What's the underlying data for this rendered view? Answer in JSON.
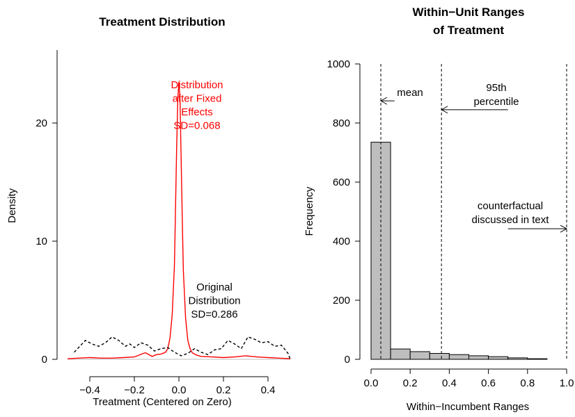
{
  "chart_data": [
    {
      "type": "line",
      "title": "Treatment Distribution",
      "xlabel": "Treatment (Centered on Zero)",
      "ylabel": "Density",
      "xlim": [
        -0.52,
        0.55
      ],
      "ylim": [
        0,
        26
      ],
      "x_ticks": [
        "-0.4",
        "-0.2",
        "0.0",
        "0.2",
        "0.4"
      ],
      "x_tick_values": [
        -0.4,
        -0.2,
        0.0,
        0.2,
        0.4
      ],
      "y_ticks": [
        "0",
        "10",
        "20"
      ],
      "y_tick_values": [
        0,
        10,
        20
      ],
      "series": [
        {
          "color": "#ff0000",
          "style": "solid",
          "x": [
            -0.5,
            -0.45,
            -0.4,
            -0.35,
            -0.3,
            -0.25,
            -0.2,
            -0.18,
            -0.16,
            -0.15,
            -0.14,
            -0.12,
            -0.1,
            -0.08,
            -0.06,
            -0.05,
            -0.04,
            -0.03,
            -0.02,
            -0.015,
            -0.01,
            -0.005,
            0.0,
            0.005,
            0.01,
            0.015,
            0.02,
            0.03,
            0.04,
            0.05,
            0.06,
            0.08,
            0.1,
            0.15,
            0.2,
            0.25,
            0.3,
            0.35,
            0.4,
            0.45,
            0.5
          ],
          "y": [
            0.05,
            0.1,
            0.15,
            0.1,
            0.1,
            0.15,
            0.2,
            0.35,
            0.5,
            0.55,
            0.45,
            0.25,
            0.4,
            0.45,
            0.6,
            0.9,
            1.8,
            3.8,
            8.0,
            13.0,
            18.0,
            22.0,
            23.5,
            22.0,
            17.0,
            12.0,
            7.5,
            3.5,
            1.6,
            0.9,
            0.55,
            0.35,
            0.25,
            0.2,
            0.15,
            0.2,
            0.3,
            0.2,
            0.15,
            0.1,
            0.05
          ]
        },
        {
          "color": "#000000",
          "style": "dashed",
          "x": [
            -0.47,
            -0.44,
            -0.42,
            -0.39,
            -0.36,
            -0.33,
            -0.3,
            -0.27,
            -0.24,
            -0.22,
            -0.2,
            -0.17,
            -0.14,
            -0.11,
            -0.08,
            -0.05,
            -0.02,
            0.01,
            0.04,
            0.07,
            0.1,
            0.13,
            0.16,
            0.19,
            0.22,
            0.25,
            0.28,
            0.31,
            0.34,
            0.37,
            0.4,
            0.43,
            0.46,
            0.49,
            0.5
          ],
          "y": [
            0.6,
            1.2,
            1.6,
            1.3,
            1.1,
            1.4,
            1.9,
            1.6,
            1.1,
            1.3,
            1.0,
            1.4,
            1.2,
            0.7,
            0.9,
            1.0,
            0.6,
            0.3,
            0.5,
            0.9,
            0.6,
            0.4,
            0.8,
            0.9,
            1.6,
            1.3,
            0.9,
            1.9,
            1.7,
            1.4,
            1.5,
            1.1,
            1.2,
            0.5,
            0.0
          ]
        }
      ],
      "annotations": [
        {
          "lines": [
            "Distribution",
            "after Fixed",
            "Effects",
            "SD=0.068"
          ],
          "color": "#ff0000"
        },
        {
          "lines": [
            "Original",
            "Distribution",
            "SD=0.286"
          ],
          "color": "#000000"
        }
      ]
    },
    {
      "type": "bar",
      "title_lines": [
        "Within−Unit Ranges",
        "of Treatment"
      ],
      "xlabel": "Within−Incumbent Ranges",
      "ylabel": "Frequency",
      "xlim": [
        0,
        1
      ],
      "ylim": [
        0,
        1000
      ],
      "x_ticks": [
        "0.0",
        "0.2",
        "0.4",
        "0.6",
        "0.8",
        "1.0"
      ],
      "x_tick_values": [
        0.0,
        0.2,
        0.4,
        0.6,
        0.8,
        1.0
      ],
      "y_ticks": [
        "0",
        "200",
        "400",
        "600",
        "800",
        "1000"
      ],
      "y_tick_values": [
        0,
        200,
        400,
        600,
        800,
        1000
      ],
      "bins": [
        [
          0.0,
          0.1
        ],
        [
          0.1,
          0.2
        ],
        [
          0.2,
          0.3
        ],
        [
          0.3,
          0.4
        ],
        [
          0.4,
          0.5
        ],
        [
          0.5,
          0.6
        ],
        [
          0.6,
          0.7
        ],
        [
          0.7,
          0.8
        ],
        [
          0.8,
          0.9
        ]
      ],
      "values": [
        735,
        35,
        26,
        20,
        16,
        12,
        9,
        5,
        2
      ],
      "bar_color": "#bebebe",
      "vlines": [
        0.05,
        0.36,
        1.0
      ],
      "annotations": [
        {
          "lines": [
            "mean"
          ],
          "arrow_to": 0.05,
          "arrow_from": 0.12,
          "arrow_y": 875
        },
        {
          "lines": [
            "95th",
            "percentile"
          ],
          "arrow_to": 0.36,
          "arrow_from": 0.7,
          "arrow_y": 845
        },
        {
          "lines": [
            "counterfactual",
            "discussed in text"
          ],
          "arrow_to": 1.0,
          "arrow_from": 0.7,
          "arrow_y": 442
        }
      ]
    }
  ]
}
